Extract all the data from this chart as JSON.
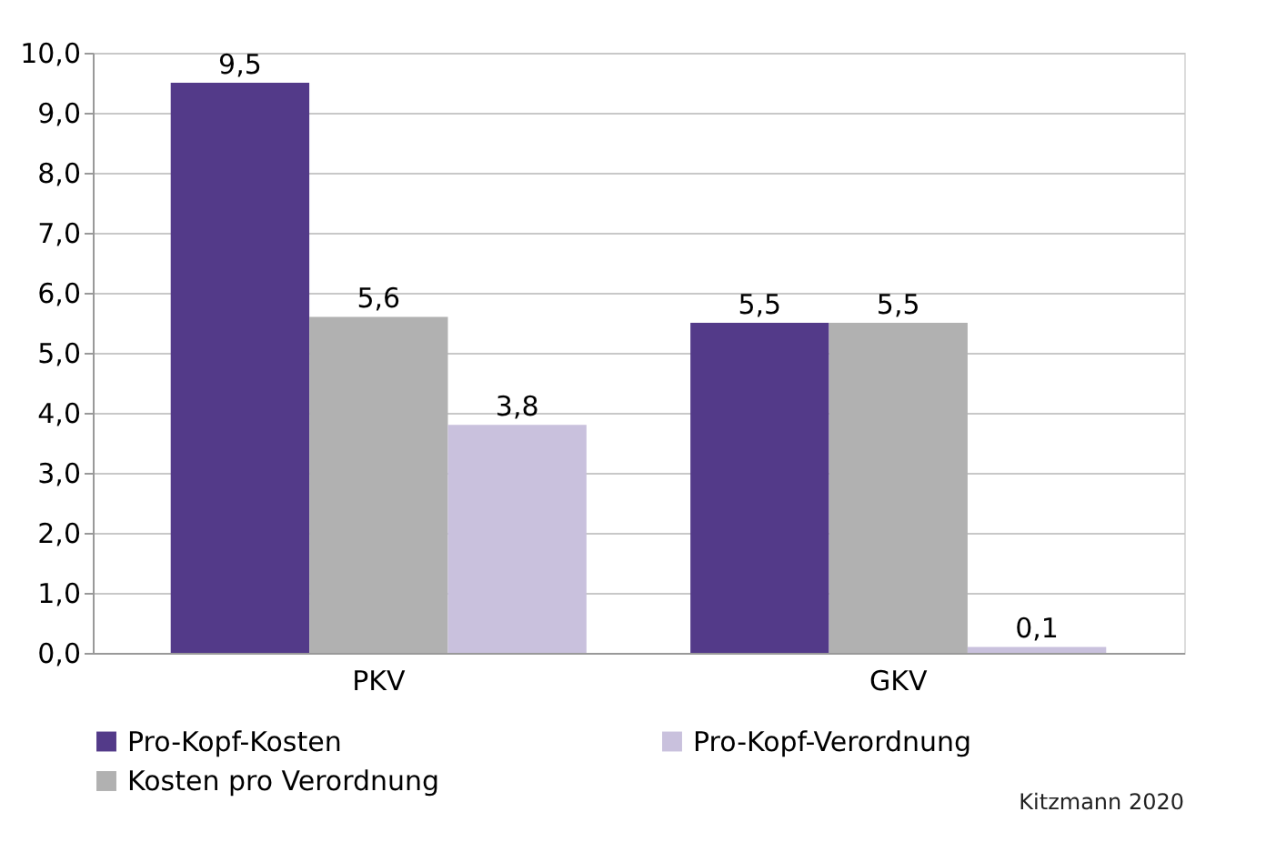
{
  "chart_data": {
    "type": "bar",
    "categories": [
      "PKV",
      "GKV"
    ],
    "series": [
      {
        "name": "Pro-Kopf-Kosten",
        "color": "#533a89",
        "values": [
          9.5,
          5.5
        ],
        "value_labels": [
          "9,5",
          "5,5"
        ]
      },
      {
        "name": "Kosten pro Verordnung",
        "color": "#b1b1b1",
        "values": [
          5.6,
          5.5
        ],
        "value_labels": [
          "5,6",
          "5,5"
        ]
      },
      {
        "name": "Pro-Kopf-Verordnung",
        "color": "#c9c1dd",
        "values": [
          3.8,
          0.1
        ],
        "value_labels": [
          "3,8",
          "0,1"
        ]
      }
    ],
    "ylim": [
      0,
      10
    ],
    "yticks": [
      {
        "value": 0,
        "label": "0,0"
      },
      {
        "value": 1,
        "label": "1,0"
      },
      {
        "value": 2,
        "label": "2,0"
      },
      {
        "value": 3,
        "label": "3,0"
      },
      {
        "value": 4,
        "label": "4,0"
      },
      {
        "value": 5,
        "label": "5,0"
      },
      {
        "value": 6,
        "label": "6,0"
      },
      {
        "value": 7,
        "label": "7,0"
      },
      {
        "value": 8,
        "label": "8,0"
      },
      {
        "value": 9,
        "label": "9,0"
      },
      {
        "value": 10,
        "label": "10,0"
      }
    ],
    "grid": "y",
    "legend": "bottom",
    "annotations": [
      "Kitzmann 2020"
    ]
  }
}
